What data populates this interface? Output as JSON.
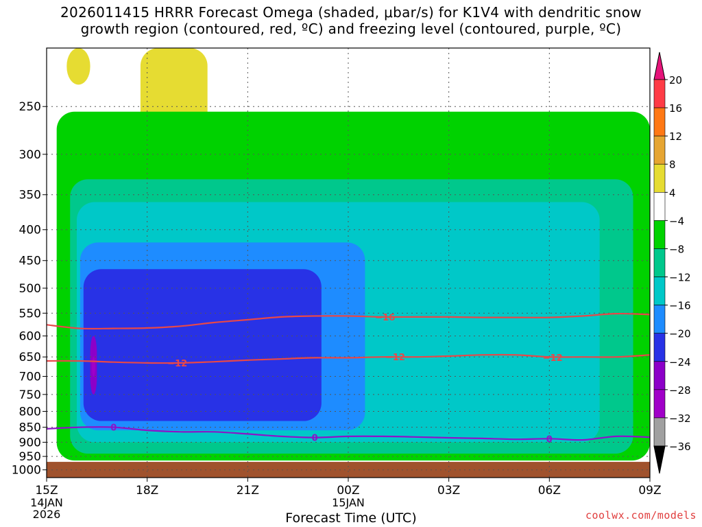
{
  "title": {
    "line1": "2026011415 HRRR Forecast Omega (shaded, μbar/s) for K1V4 with dendritic snow",
    "line2": "growth region (contoured, red, ºC) and freezing level (contoured, purple, ºC)"
  },
  "credit": "coolwx.com/models",
  "chart_data": {
    "type": "heatmap",
    "xlabel": "Forecast Time (UTC)",
    "ylabel": "",
    "x_ticks": [
      {
        "hour": 0,
        "label": "15Z",
        "sub": [
          "14JAN",
          "2026"
        ]
      },
      {
        "hour": 3,
        "label": "18Z",
        "sub": []
      },
      {
        "hour": 6,
        "label": "21Z",
        "sub": []
      },
      {
        "hour": 9,
        "label": "00Z",
        "sub": [
          "15JAN"
        ]
      },
      {
        "hour": 12,
        "label": "03Z",
        "sub": []
      },
      {
        "hour": 15,
        "label": "06Z",
        "sub": []
      },
      {
        "hour": 18,
        "label": "09Z",
        "sub": []
      }
    ],
    "xlim_hours": [
      0,
      18
    ],
    "y_ticks": [
      250,
      300,
      350,
      400,
      450,
      500,
      550,
      600,
      650,
      700,
      750,
      800,
      850,
      900,
      950,
      1000
    ],
    "ylim_hpa": [
      200,
      1030
    ],
    "y_scale": "log-pressure",
    "grid": true,
    "surface_pressure_hpa": 970,
    "colorbar": {
      "labels": [
        "20",
        "16",
        "12",
        "8",
        "4",
        "−4",
        "−8",
        "−12",
        "−16",
        "−20",
        "−24",
        "−28",
        "−32",
        "−36"
      ],
      "levels": [
        20,
        16,
        12,
        8,
        4,
        -4,
        -8,
        -12,
        -16,
        -20,
        -24,
        -28,
        -32,
        -36
      ],
      "colors": [
        "#ff3c46",
        "#ff7814",
        "#e6a532",
        "#e6dc32",
        "#ffffff",
        "#00d200",
        "#00c88c",
        "#00c8c8",
        "#1e8cff",
        "#2832e6",
        "#8c00c8",
        "#a000c8",
        "#a0a0a0"
      ],
      "top_color": "#e6147a",
      "bottom_color": "#000000"
    },
    "omega_regions": [
      {
        "level": 4,
        "color": "#e6dc32",
        "hour": [
          0.6,
          1.3
        ],
        "hpa": [
          200,
          230
        ]
      },
      {
        "level": 4,
        "color": "#e6dc32",
        "hour": [
          2.8,
          4.8
        ],
        "hpa": [
          200,
          290
        ]
      },
      {
        "level": 4,
        "color": "#e6dc32",
        "hour": [
          3.9,
          4.1
        ],
        "hpa": [
          820,
          880
        ]
      },
      {
        "level": 4,
        "color": "#e6dc32",
        "hour": [
          13.7,
          15.3
        ],
        "hpa": [
          955,
          965
        ]
      },
      {
        "level": -4,
        "color": "#00d200",
        "hour": [
          0.3,
          18
        ],
        "hpa": [
          255,
          965
        ]
      },
      {
        "level": -8,
        "color": "#00c88c",
        "hour": [
          0.7,
          17.5
        ],
        "hpa": [
          330,
          940
        ]
      },
      {
        "level": -12,
        "color": "#00c8c8",
        "hour": [
          0.9,
          16.5
        ],
        "hpa": [
          360,
          900
        ]
      },
      {
        "level": -16,
        "color": "#1e8cff",
        "hour": [
          1.0,
          9.5
        ],
        "hpa": [
          420,
          860
        ]
      },
      {
        "level": -20,
        "color": "#2832e6",
        "hour": [
          1.1,
          8.2
        ],
        "hpa": [
          465,
          830
        ]
      },
      {
        "level": -24,
        "color": "#8c00c8",
        "hour": [
          1.3,
          1.5
        ],
        "hpa": [
          600,
          750
        ]
      },
      {
        "level": -28,
        "color": "#a000c8",
        "hour": [
          1.35,
          1.45
        ],
        "hpa": [
          650,
          700
        ]
      }
    ],
    "contours": [
      {
        "name": "-16",
        "kind": "dendritic",
        "color": "#e84848",
        "x": [
          0,
          1,
          2,
          3,
          4,
          5,
          6,
          7,
          8,
          9,
          10,
          11,
          12,
          13,
          14,
          15,
          16,
          17,
          18
        ],
        "y": [
          575,
          583,
          583,
          582,
          578,
          570,
          564,
          558,
          556,
          556,
          558,
          558,
          558,
          559,
          559,
          559,
          556,
          551,
          553
        ],
        "label_hour": 10.1
      },
      {
        "name": "-12",
        "kind": "dendritic",
        "color": "#e84848",
        "x": [
          0,
          1,
          2,
          3,
          4,
          5,
          6,
          7,
          8,
          9,
          10,
          11,
          12,
          13,
          14,
          15,
          16,
          17,
          18
        ],
        "y": [
          660,
          660,
          663,
          665,
          665,
          662,
          658,
          655,
          652,
          652,
          650,
          650,
          648,
          645,
          645,
          650,
          650,
          650,
          645
        ],
        "label_hour": 3.9
      },
      {
        "name": "0",
        "kind": "freezing",
        "color": "#8c14c8",
        "x": [
          0,
          1,
          2,
          3,
          4,
          5,
          6,
          7,
          8,
          9,
          10,
          11,
          12,
          13,
          14,
          15,
          16,
          17,
          18
        ],
        "y": [
          855,
          850,
          850,
          860,
          865,
          865,
          872,
          880,
          884,
          880,
          880,
          882,
          885,
          887,
          890,
          888,
          892,
          880,
          883
        ],
        "label_hour": 2.0
      }
    ],
    "extra_labels": [
      {
        "text": "−12",
        "hour": 10.4,
        "hpa": 650
      },
      {
        "text": "−12",
        "hour": 15.1,
        "hpa": 651
      },
      {
        "text": "0",
        "hour": 8.0,
        "hpa": 884
      },
      {
        "text": "0",
        "hour": 15.0,
        "hpa": 888
      }
    ]
  }
}
